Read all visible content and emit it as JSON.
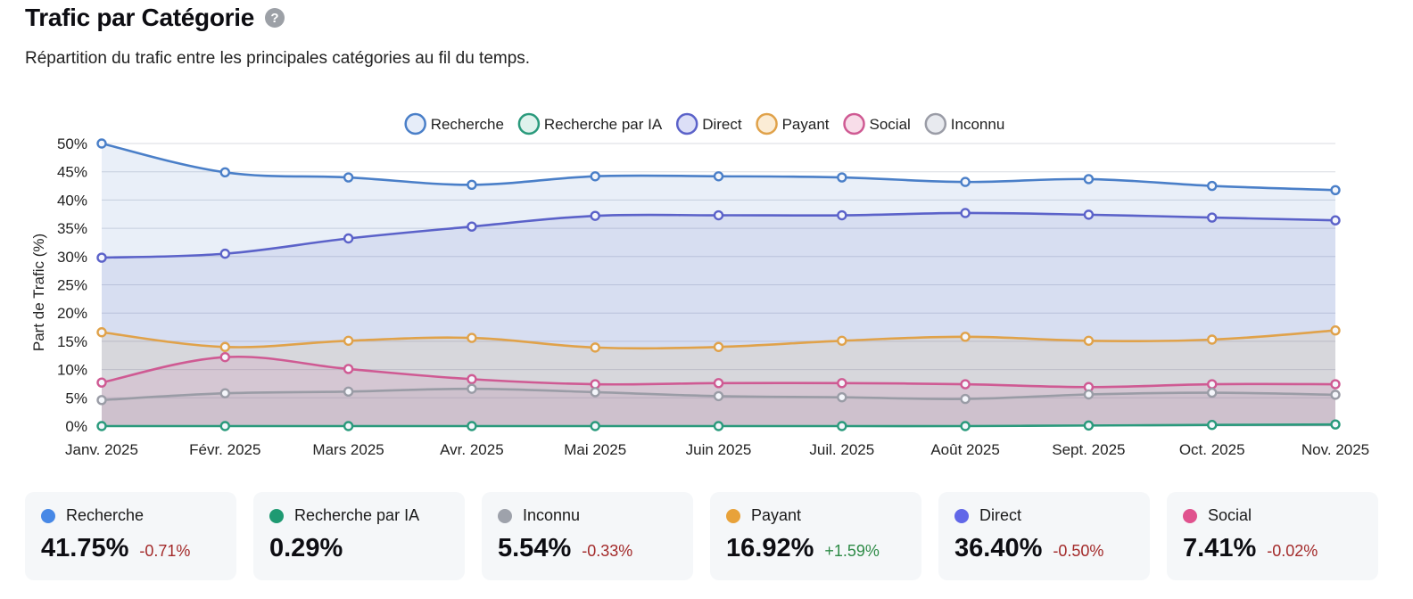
{
  "header": {
    "title": "Trafic par Catégorie",
    "help_icon": "question-circle-icon",
    "subtitle": "Répartition du trafic entre les principales catégories au fil du temps."
  },
  "chart_data": {
    "type": "area",
    "title": "",
    "xlabel": "",
    "ylabel": "Part de Trafic (%)",
    "ylim": [
      0,
      50
    ],
    "yticks": [
      "0%",
      "5%",
      "10%",
      "15%",
      "20%",
      "25%",
      "30%",
      "35%",
      "40%",
      "45%",
      "50%"
    ],
    "ytick_values": [
      0,
      5,
      10,
      15,
      20,
      25,
      30,
      35,
      40,
      45,
      50
    ],
    "grid": true,
    "legend_position": "top-center",
    "categories": [
      "Janv. 2025",
      "Févr. 2025",
      "Mars 2025",
      "Avr. 2025",
      "Mai 2025",
      "Juin 2025",
      "Juil. 2025",
      "Août 2025",
      "Sept. 2025",
      "Oct. 2025",
      "Nov. 2025"
    ],
    "series": [
      {
        "name": "Recherche",
        "color": "#4a7fc8",
        "fill": "#e6edf9",
        "values": [
          50.0,
          44.9,
          44.0,
          42.7,
          44.2,
          44.2,
          44.0,
          43.2,
          43.7,
          42.5,
          41.75
        ]
      },
      {
        "name": "Recherche par IA",
        "color": "#2a9a7c",
        "fill": "#dff2ec",
        "values": [
          0.0,
          0.0,
          0.0,
          0.0,
          0.0,
          0.0,
          0.0,
          0.0,
          0.1,
          0.2,
          0.29
        ]
      },
      {
        "name": "Direct",
        "color": "#5b62c9",
        "fill": "#dcdff7",
        "values": [
          29.8,
          30.5,
          33.2,
          35.3,
          37.2,
          37.3,
          37.3,
          37.7,
          37.4,
          36.9,
          36.4
        ]
      },
      {
        "name": "Payant",
        "color": "#e0a24a",
        "fill": "#fbecd5",
        "values": [
          16.6,
          14.0,
          15.1,
          15.6,
          13.9,
          14.0,
          15.1,
          15.8,
          15.1,
          15.3,
          16.92
        ]
      },
      {
        "name": "Social",
        "color": "#cf5a93",
        "fill": "#f8dde9",
        "values": [
          7.7,
          12.2,
          10.1,
          8.3,
          7.4,
          7.6,
          7.6,
          7.4,
          6.9,
          7.4,
          7.41
        ]
      },
      {
        "name": "Inconnu",
        "color": "#9a9ca6",
        "fill": "#e8eaef",
        "values": [
          4.6,
          5.8,
          6.1,
          6.6,
          6.0,
          5.3,
          5.1,
          4.8,
          5.6,
          5.9,
          5.54
        ]
      }
    ]
  },
  "cards": [
    {
      "name": "Recherche",
      "color": "#4788e6",
      "value": "41.75%",
      "delta": "-0.71%",
      "trend": "neg"
    },
    {
      "name": "Recherche par IA",
      "color": "#1f9a72",
      "value": "0.29%",
      "delta": "",
      "trend": "none"
    },
    {
      "name": "Inconnu",
      "color": "#9ea2ab",
      "value": "5.54%",
      "delta": "-0.33%",
      "trend": "neg"
    },
    {
      "name": "Payant",
      "color": "#e8a23a",
      "value": "16.92%",
      "delta": "+1.59%",
      "trend": "pos"
    },
    {
      "name": "Direct",
      "color": "#6167e8",
      "value": "36.40%",
      "delta": "-0.50%",
      "trend": "neg"
    },
    {
      "name": "Social",
      "color": "#e0528e",
      "value": "7.41%",
      "delta": "-0.02%",
      "trend": "neg"
    }
  ]
}
